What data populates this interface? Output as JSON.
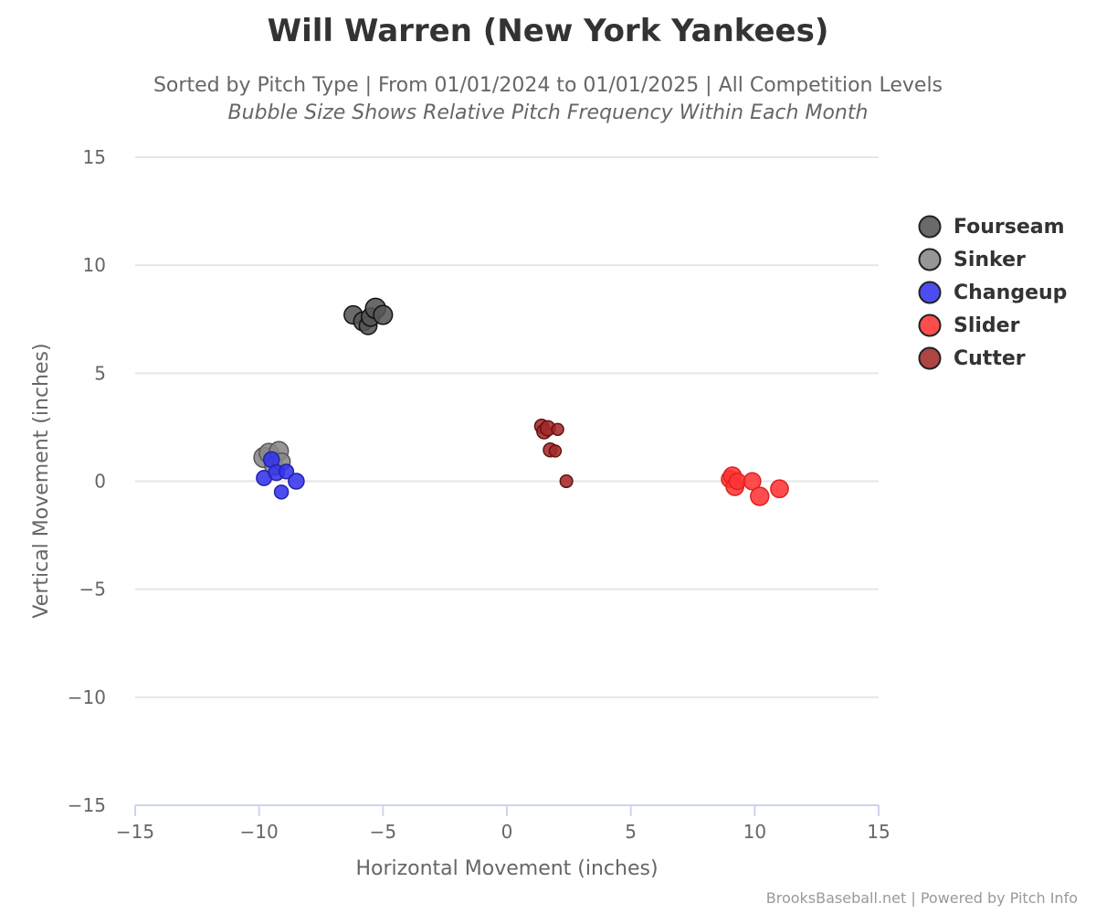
{
  "title": "Will Warren (New York Yankees)",
  "subtitle": "Sorted by Pitch Type | From 01/01/2024 to 01/01/2025 | All Competition Levels",
  "subtitle2": "Bubble Size Shows Relative Pitch Frequency Within Each Month",
  "credits": "BrooksBaseball.net | Powered by Pitch Info",
  "chart_data": {
    "type": "scatter",
    "xlabel": "Horizontal Movement (inches)",
    "ylabel": "Vertical Movement (inches)",
    "xlim": [
      -15,
      15
    ],
    "ylim": [
      -15,
      15
    ],
    "xticks": [
      "−15",
      "−10",
      "−5",
      "0",
      "5",
      "10",
      "15"
    ],
    "yticks": [
      "15",
      "10",
      "5",
      "0",
      "−5",
      "−10",
      "−15"
    ],
    "grid": true,
    "legend_position": "right",
    "series": [
      {
        "name": "Fourseam",
        "color": "#555555",
        "stroke": "#111111",
        "points": [
          {
            "x": -6.2,
            "y": 7.7,
            "size": 0.85
          },
          {
            "x": -5.8,
            "y": 7.4,
            "size": 0.9
          },
          {
            "x": -5.6,
            "y": 7.2,
            "size": 0.8
          },
          {
            "x": -5.5,
            "y": 7.6,
            "size": 0.85
          },
          {
            "x": -5.3,
            "y": 8.0,
            "size": 1.0
          },
          {
            "x": -5.0,
            "y": 7.7,
            "size": 0.9
          }
        ]
      },
      {
        "name": "Sinker",
        "color": "#888888",
        "stroke": "#555555",
        "points": [
          {
            "x": -9.8,
            "y": 1.1,
            "size": 1.0
          },
          {
            "x": -9.6,
            "y": 1.3,
            "size": 0.95
          },
          {
            "x": -9.4,
            "y": 0.7,
            "size": 0.85
          },
          {
            "x": -9.2,
            "y": 1.4,
            "size": 0.9
          },
          {
            "x": -9.1,
            "y": 0.9,
            "size": 0.8
          }
        ]
      },
      {
        "name": "Changeup",
        "color": "#3333ee",
        "stroke": "#2222aa",
        "points": [
          {
            "x": -9.8,
            "y": 0.15,
            "size": 0.6
          },
          {
            "x": -9.5,
            "y": 1.0,
            "size": 0.65
          },
          {
            "x": -9.3,
            "y": 0.4,
            "size": 0.65
          },
          {
            "x": -8.9,
            "y": 0.45,
            "size": 0.55
          },
          {
            "x": -8.5,
            "y": 0.0,
            "size": 0.65
          },
          {
            "x": -9.1,
            "y": -0.5,
            "size": 0.5
          }
        ]
      },
      {
        "name": "Slider",
        "color": "#ff3333",
        "stroke": "#dd2222",
        "points": [
          {
            "x": 9.0,
            "y": 0.1,
            "size": 0.75
          },
          {
            "x": 9.1,
            "y": 0.25,
            "size": 0.8
          },
          {
            "x": 9.2,
            "y": -0.25,
            "size": 0.8
          },
          {
            "x": 9.3,
            "y": 0.0,
            "size": 0.7
          },
          {
            "x": 9.9,
            "y": 0.0,
            "size": 0.75
          },
          {
            "x": 10.2,
            "y": -0.7,
            "size": 0.85
          },
          {
            "x": 11.0,
            "y": -0.35,
            "size": 0.8
          }
        ]
      },
      {
        "name": "Cutter",
        "color": "#a32a2a",
        "stroke": "#661111",
        "points": [
          {
            "x": 1.4,
            "y": 2.55,
            "size": 0.5
          },
          {
            "x": 1.5,
            "y": 2.3,
            "size": 0.55
          },
          {
            "x": 1.65,
            "y": 2.45,
            "size": 0.6
          },
          {
            "x": 2.05,
            "y": 2.4,
            "size": 0.35
          },
          {
            "x": 1.75,
            "y": 1.45,
            "size": 0.5
          },
          {
            "x": 1.95,
            "y": 1.4,
            "size": 0.35
          },
          {
            "x": 2.4,
            "y": 0.0,
            "size": 0.4
          }
        ]
      }
    ]
  }
}
